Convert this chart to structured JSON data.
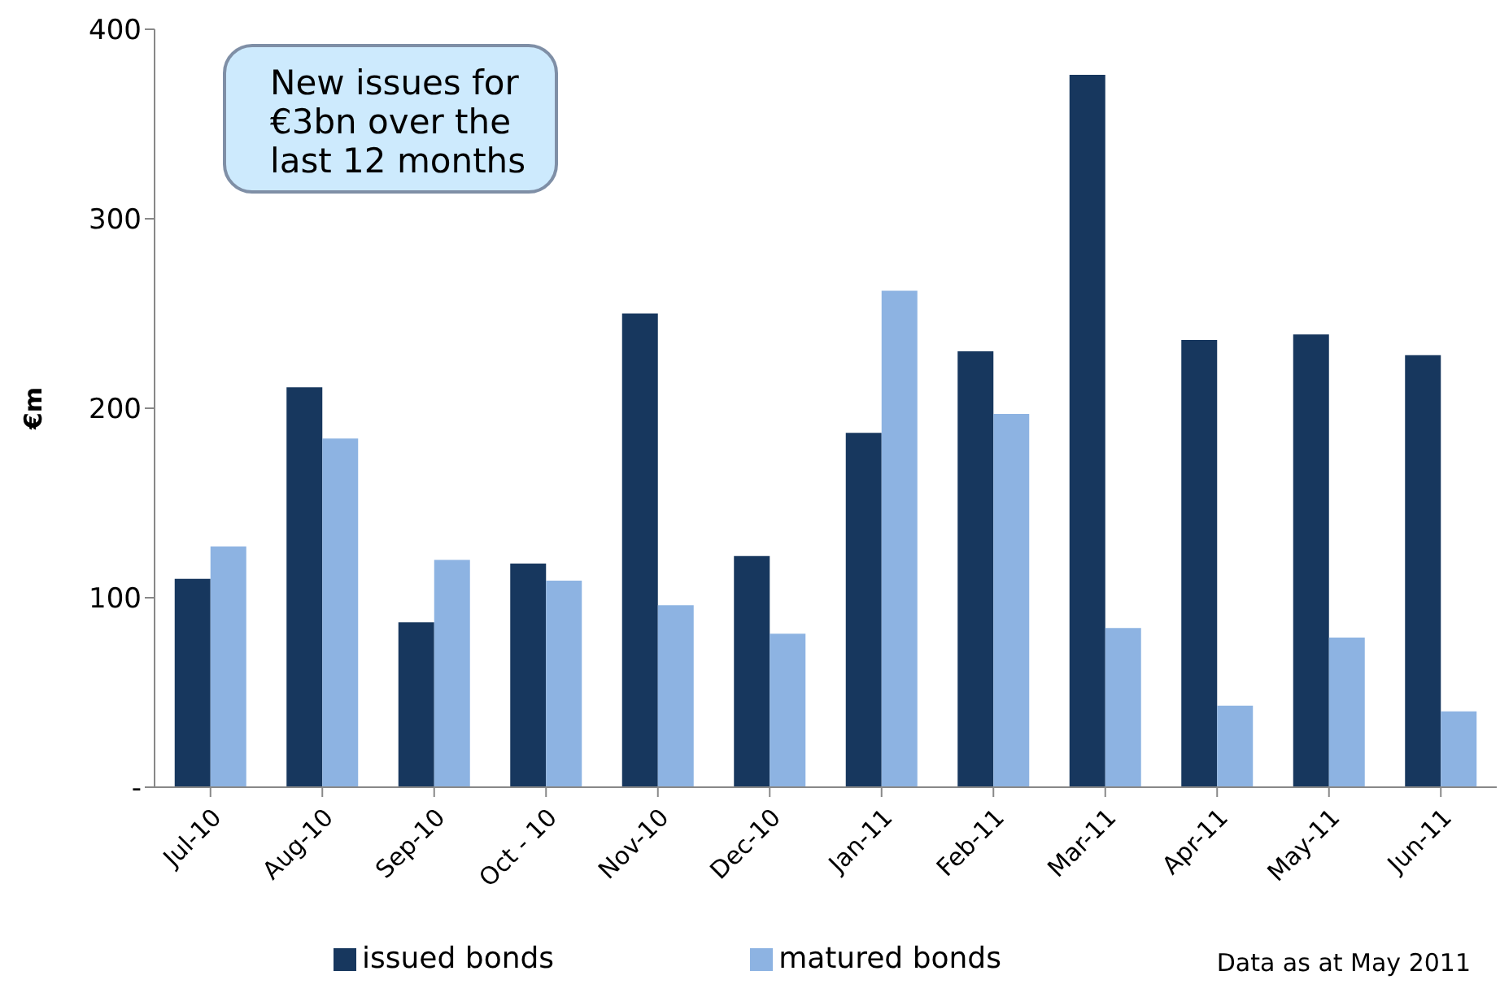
{
  "chart_data": {
    "type": "bar",
    "ylabel": "€m",
    "categories": [
      "Jul-10",
      "Aug-10",
      "Sep-10",
      "Oct - 10",
      "Nov-10",
      "Dec-10",
      "Jan-11",
      "Feb-11",
      "Mar-11",
      "Apr-11",
      "May-11",
      "Jun-11"
    ],
    "series": [
      {
        "name": "issued bonds",
        "color": "#17375e",
        "values": [
          110,
          211,
          87,
          118,
          250,
          122,
          187,
          230,
          376,
          236,
          239,
          228
        ]
      },
      {
        "name": "matured bonds",
        "color": "#8db3e2",
        "values": [
          127,
          184,
          120,
          109,
          96,
          81,
          262,
          197,
          84,
          43,
          79,
          40
        ]
      }
    ],
    "ylim": [
      0,
      400
    ],
    "yticks": [
      {
        "value": 0,
        "label": "-"
      },
      100,
      200,
      300,
      400
    ],
    "legend": "bottom",
    "annotations": [
      "New issues for €3bn over the last 12 months",
      "Data as at May 2011"
    ]
  }
}
